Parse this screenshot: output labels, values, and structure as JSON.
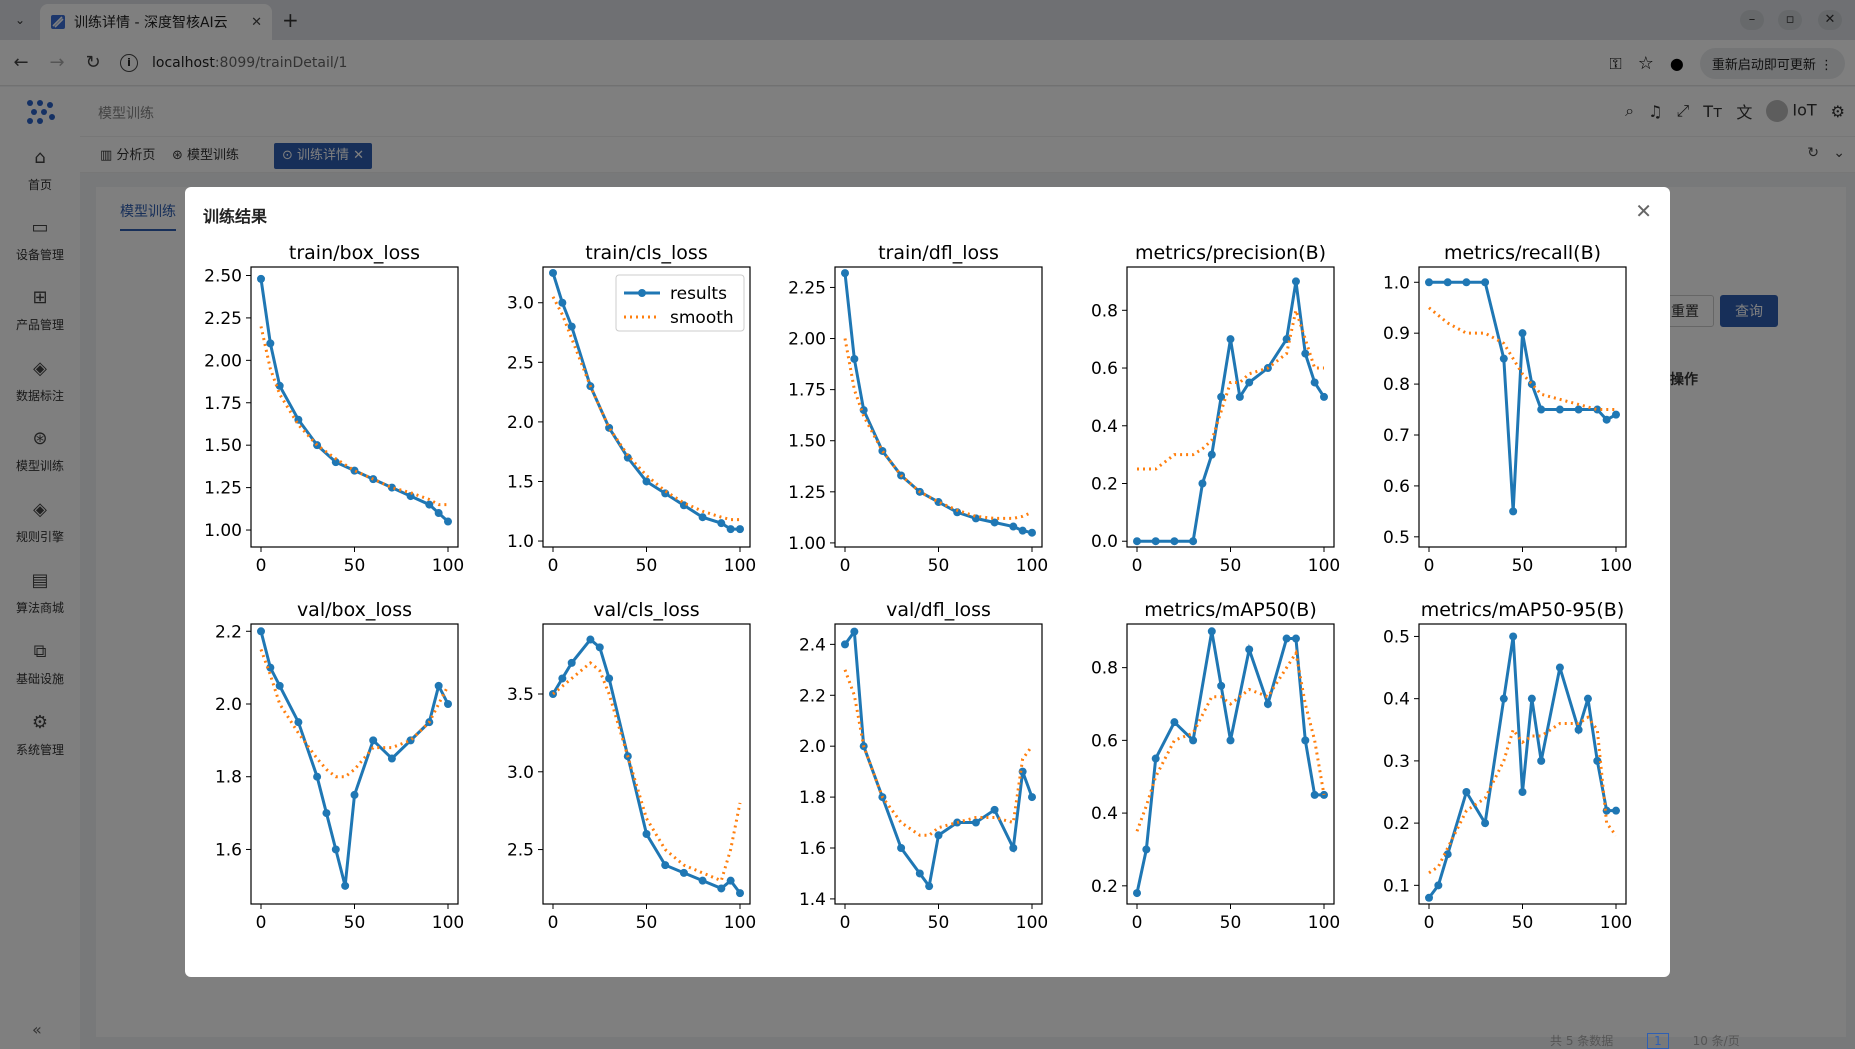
{
  "browser": {
    "tab_title": "训练详情 - 深度智核AI云",
    "new_tab": "+",
    "url_host": "localhost",
    "url_path": ":8099/trainDetail/1",
    "update_label": "重新启动即可更新"
  },
  "header": {
    "breadcrumb": "模型训练",
    "user": "IoT"
  },
  "tags": [
    {
      "label": "分析页"
    },
    {
      "label": "模型训练"
    },
    {
      "label": "训练详情"
    }
  ],
  "sidebar": {
    "items": [
      {
        "label": "首页",
        "icon": "home-icon"
      },
      {
        "label": "设备管理",
        "icon": "monitor-icon"
      },
      {
        "label": "产品管理",
        "icon": "sitemap-icon"
      },
      {
        "label": "数据标注",
        "icon": "diamond-icon"
      },
      {
        "label": "模型训练",
        "icon": "aperture-icon"
      },
      {
        "label": "规则引擎",
        "icon": "diamond-icon"
      },
      {
        "label": "算法商城",
        "icon": "store-icon"
      },
      {
        "label": "基础设施",
        "icon": "layers-icon"
      },
      {
        "label": "系统管理",
        "icon": "gear-icon"
      }
    ]
  },
  "page": {
    "content_tab": "模型训练",
    "reset": "重置",
    "query": "查询",
    "ops_header": "操作",
    "pager_total": "共 5 条数据",
    "pager_page": "1",
    "pager_size": "10 条/页"
  },
  "modal": {
    "title": "训练结果"
  },
  "chart_data": [
    {
      "type": "line",
      "title": "train/box_loss",
      "xticks": [
        "0",
        "50",
        "100"
      ],
      "yticks": [
        "1.00",
        "1.25",
        "1.50",
        "1.75",
        "2.00",
        "2.25",
        "2.50"
      ],
      "xlim": [
        0,
        100
      ],
      "ylim": [
        0.9,
        2.55
      ],
      "series": [
        {
          "name": "results",
          "x": [
            0,
            5,
            10,
            20,
            30,
            40,
            50,
            60,
            70,
            80,
            90,
            95,
            100
          ],
          "values": [
            2.48,
            2.1,
            1.85,
            1.65,
            1.5,
            1.4,
            1.35,
            1.3,
            1.25,
            1.2,
            1.15,
            1.1,
            1.05
          ]
        },
        {
          "name": "smooth",
          "x": [
            0,
            5,
            10,
            20,
            30,
            40,
            50,
            60,
            70,
            80,
            90,
            95,
            100
          ],
          "values": [
            2.2,
            1.95,
            1.8,
            1.62,
            1.5,
            1.42,
            1.35,
            1.3,
            1.25,
            1.22,
            1.18,
            1.15,
            1.15
          ]
        }
      ],
      "legend": false
    },
    {
      "type": "line",
      "title": "train/cls_loss",
      "xticks": [
        "0",
        "50",
        "100"
      ],
      "yticks": [
        "1.0",
        "1.5",
        "2.0",
        "2.5",
        "3.0"
      ],
      "xlim": [
        0,
        100
      ],
      "ylim": [
        0.95,
        3.3
      ],
      "series": [
        {
          "name": "results",
          "x": [
            0,
            5,
            10,
            20,
            30,
            40,
            50,
            60,
            70,
            80,
            90,
            95,
            100
          ],
          "values": [
            3.25,
            3.0,
            2.8,
            2.3,
            1.95,
            1.7,
            1.5,
            1.4,
            1.3,
            1.2,
            1.15,
            1.1,
            1.1
          ]
        },
        {
          "name": "smooth",
          "x": [
            0,
            5,
            10,
            20,
            30,
            40,
            50,
            60,
            70,
            80,
            90,
            95,
            100
          ],
          "values": [
            3.05,
            2.9,
            2.7,
            2.3,
            1.95,
            1.72,
            1.55,
            1.42,
            1.32,
            1.25,
            1.2,
            1.18,
            1.18
          ]
        }
      ],
      "legend": true,
      "legend_position": "top-right"
    },
    {
      "type": "line",
      "title": "train/dfl_loss",
      "xticks": [
        "0",
        "50",
        "100"
      ],
      "yticks": [
        "1.00",
        "1.25",
        "1.50",
        "1.75",
        "2.00",
        "2.25"
      ],
      "xlim": [
        0,
        100
      ],
      "ylim": [
        0.98,
        2.35
      ],
      "series": [
        {
          "name": "results",
          "x": [
            0,
            5,
            10,
            20,
            30,
            40,
            50,
            60,
            70,
            80,
            90,
            95,
            100
          ],
          "values": [
            2.32,
            1.9,
            1.65,
            1.45,
            1.33,
            1.25,
            1.2,
            1.15,
            1.12,
            1.1,
            1.08,
            1.06,
            1.05
          ]
        },
        {
          "name": "smooth",
          "x": [
            0,
            5,
            10,
            20,
            30,
            40,
            50,
            60,
            70,
            80,
            90,
            95,
            100
          ],
          "values": [
            2.0,
            1.75,
            1.62,
            1.45,
            1.33,
            1.25,
            1.2,
            1.16,
            1.13,
            1.12,
            1.12,
            1.13,
            1.15
          ]
        }
      ],
      "legend": false
    },
    {
      "type": "line",
      "title": "metrics/precision(B)",
      "xticks": [
        "0",
        "50",
        "100"
      ],
      "yticks": [
        "0.0",
        "0.2",
        "0.4",
        "0.6",
        "0.8"
      ],
      "xlim": [
        0,
        100
      ],
      "ylim": [
        -0.02,
        0.95
      ],
      "series": [
        {
          "name": "results",
          "x": [
            0,
            10,
            20,
            30,
            35,
            40,
            45,
            50,
            55,
            60,
            70,
            80,
            85,
            90,
            95,
            100
          ],
          "values": [
            0.0,
            0.0,
            0.0,
            0.0,
            0.2,
            0.3,
            0.5,
            0.7,
            0.5,
            0.55,
            0.6,
            0.7,
            0.9,
            0.65,
            0.55,
            0.5
          ]
        },
        {
          "name": "smooth",
          "x": [
            0,
            10,
            20,
            30,
            35,
            40,
            45,
            50,
            55,
            60,
            70,
            80,
            85,
            90,
            95,
            100
          ],
          "values": [
            0.25,
            0.25,
            0.3,
            0.3,
            0.32,
            0.35,
            0.45,
            0.55,
            0.55,
            0.58,
            0.6,
            0.65,
            0.8,
            0.7,
            0.6,
            0.6
          ]
        }
      ],
      "legend": false
    },
    {
      "type": "line",
      "title": "metrics/recall(B)",
      "xticks": [
        "0",
        "50",
        "100"
      ],
      "yticks": [
        "0.5",
        "0.6",
        "0.7",
        "0.8",
        "0.9",
        "1.0"
      ],
      "xlim": [
        0,
        100
      ],
      "ylim": [
        0.48,
        1.03
      ],
      "series": [
        {
          "name": "results",
          "x": [
            0,
            10,
            20,
            30,
            40,
            45,
            50,
            55,
            60,
            70,
            80,
            90,
            95,
            100
          ],
          "values": [
            1.0,
            1.0,
            1.0,
            1.0,
            0.85,
            0.55,
            0.9,
            0.8,
            0.75,
            0.75,
            0.75,
            0.75,
            0.73,
            0.74
          ]
        },
        {
          "name": "smooth",
          "x": [
            0,
            10,
            20,
            30,
            40,
            45,
            50,
            55,
            60,
            70,
            80,
            90,
            95,
            100
          ],
          "values": [
            0.95,
            0.92,
            0.9,
            0.9,
            0.88,
            0.85,
            0.82,
            0.8,
            0.78,
            0.77,
            0.76,
            0.75,
            0.75,
            0.75
          ]
        }
      ],
      "legend": false
    },
    {
      "type": "line",
      "title": "val/box_loss",
      "xticks": [
        "0",
        "50",
        "100"
      ],
      "yticks": [
        "1.6",
        "1.8",
        "2.0",
        "2.2"
      ],
      "xlim": [
        0,
        100
      ],
      "ylim": [
        1.45,
        2.22
      ],
      "series": [
        {
          "name": "results",
          "x": [
            0,
            5,
            10,
            20,
            30,
            35,
            40,
            45,
            50,
            60,
            70,
            80,
            90,
            95,
            100
          ],
          "values": [
            2.2,
            2.1,
            2.05,
            1.95,
            1.8,
            1.7,
            1.6,
            1.5,
            1.75,
            1.9,
            1.85,
            1.9,
            1.95,
            2.05,
            2.0
          ]
        },
        {
          "name": "smooth",
          "x": [
            0,
            5,
            10,
            20,
            30,
            35,
            40,
            45,
            50,
            60,
            70,
            80,
            90,
            95,
            100
          ],
          "values": [
            2.15,
            2.08,
            2.0,
            1.92,
            1.85,
            1.82,
            1.8,
            1.8,
            1.82,
            1.88,
            1.88,
            1.9,
            1.95,
            2.0,
            2.05
          ]
        }
      ],
      "legend": false
    },
    {
      "type": "line",
      "title": "val/cls_loss",
      "xticks": [
        "0",
        "50",
        "100"
      ],
      "yticks": [
        "2.5",
        "3.0",
        "3.5"
      ],
      "xlim": [
        0,
        100
      ],
      "ylim": [
        2.15,
        3.95
      ],
      "series": [
        {
          "name": "results",
          "x": [
            0,
            5,
            10,
            20,
            25,
            30,
            40,
            50,
            60,
            70,
            80,
            90,
            95,
            100
          ],
          "values": [
            3.5,
            3.6,
            3.7,
            3.85,
            3.8,
            3.6,
            3.1,
            2.6,
            2.4,
            2.35,
            2.3,
            2.25,
            2.3,
            2.22
          ]
        },
        {
          "name": "smooth",
          "x": [
            0,
            5,
            10,
            20,
            25,
            30,
            40,
            50,
            60,
            70,
            80,
            90,
            95,
            100
          ],
          "values": [
            3.5,
            3.55,
            3.6,
            3.7,
            3.65,
            3.5,
            3.1,
            2.7,
            2.5,
            2.4,
            2.35,
            2.3,
            2.5,
            2.8
          ]
        }
      ],
      "legend": false
    },
    {
      "type": "line",
      "title": "val/dfl_loss",
      "xticks": [
        "0",
        "50",
        "100"
      ],
      "yticks": [
        "1.4",
        "1.6",
        "1.8",
        "2.0",
        "2.2",
        "2.4"
      ],
      "xlim": [
        0,
        100
      ],
      "ylim": [
        1.38,
        2.48
      ],
      "series": [
        {
          "name": "results",
          "x": [
            0,
            5,
            10,
            20,
            30,
            40,
            45,
            50,
            60,
            70,
            80,
            90,
            95,
            100
          ],
          "values": [
            2.4,
            2.45,
            2.0,
            1.8,
            1.6,
            1.5,
            1.45,
            1.65,
            1.7,
            1.7,
            1.75,
            1.6,
            1.9,
            1.8
          ]
        },
        {
          "name": "smooth",
          "x": [
            0,
            5,
            10,
            20,
            30,
            40,
            45,
            50,
            60,
            70,
            80,
            90,
            95,
            100
          ],
          "values": [
            2.3,
            2.2,
            2.0,
            1.8,
            1.7,
            1.65,
            1.65,
            1.68,
            1.7,
            1.72,
            1.72,
            1.7,
            1.95,
            2.0
          ]
        }
      ],
      "legend": false
    },
    {
      "type": "line",
      "title": "metrics/mAP50(B)",
      "xticks": [
        "0",
        "50",
        "100"
      ],
      "yticks": [
        "0.2",
        "0.4",
        "0.6",
        "0.8"
      ],
      "xlim": [
        0,
        100
      ],
      "ylim": [
        0.15,
        0.92
      ],
      "series": [
        {
          "name": "results",
          "x": [
            0,
            5,
            10,
            20,
            30,
            40,
            45,
            50,
            60,
            70,
            80,
            85,
            90,
            95,
            100
          ],
          "values": [
            0.18,
            0.3,
            0.55,
            0.65,
            0.6,
            0.9,
            0.75,
            0.6,
            0.85,
            0.7,
            0.88,
            0.88,
            0.6,
            0.45,
            0.45
          ]
        },
        {
          "name": "smooth",
          "x": [
            0,
            5,
            10,
            20,
            30,
            40,
            45,
            50,
            60,
            70,
            80,
            85,
            90,
            95,
            100
          ],
          "values": [
            0.35,
            0.42,
            0.5,
            0.6,
            0.62,
            0.72,
            0.72,
            0.7,
            0.74,
            0.72,
            0.8,
            0.84,
            0.7,
            0.6,
            0.45
          ]
        }
      ],
      "legend": false
    },
    {
      "type": "line",
      "title": "metrics/mAP50-95(B)",
      "xticks": [
        "0",
        "50",
        "100"
      ],
      "yticks": [
        "0.1",
        "0.2",
        "0.3",
        "0.4",
        "0.5"
      ],
      "xlim": [
        0,
        100
      ],
      "ylim": [
        0.07,
        0.52
      ],
      "series": [
        {
          "name": "results",
          "x": [
            0,
            5,
            10,
            20,
            30,
            40,
            45,
            50,
            55,
            60,
            70,
            80,
            85,
            90,
            95,
            100
          ],
          "values": [
            0.08,
            0.1,
            0.15,
            0.25,
            0.2,
            0.4,
            0.5,
            0.25,
            0.4,
            0.3,
            0.45,
            0.35,
            0.4,
            0.3,
            0.22,
            0.22
          ]
        },
        {
          "name": "smooth",
          "x": [
            0,
            5,
            10,
            20,
            30,
            40,
            45,
            50,
            55,
            60,
            70,
            80,
            85,
            90,
            95,
            100
          ],
          "values": [
            0.12,
            0.13,
            0.16,
            0.22,
            0.24,
            0.3,
            0.35,
            0.33,
            0.34,
            0.34,
            0.36,
            0.36,
            0.37,
            0.35,
            0.2,
            0.18
          ]
        }
      ],
      "legend": false
    }
  ],
  "colors": {
    "results": "#1f77b4",
    "smooth": "#ff7f0e",
    "accent": "#2f5fb3"
  }
}
